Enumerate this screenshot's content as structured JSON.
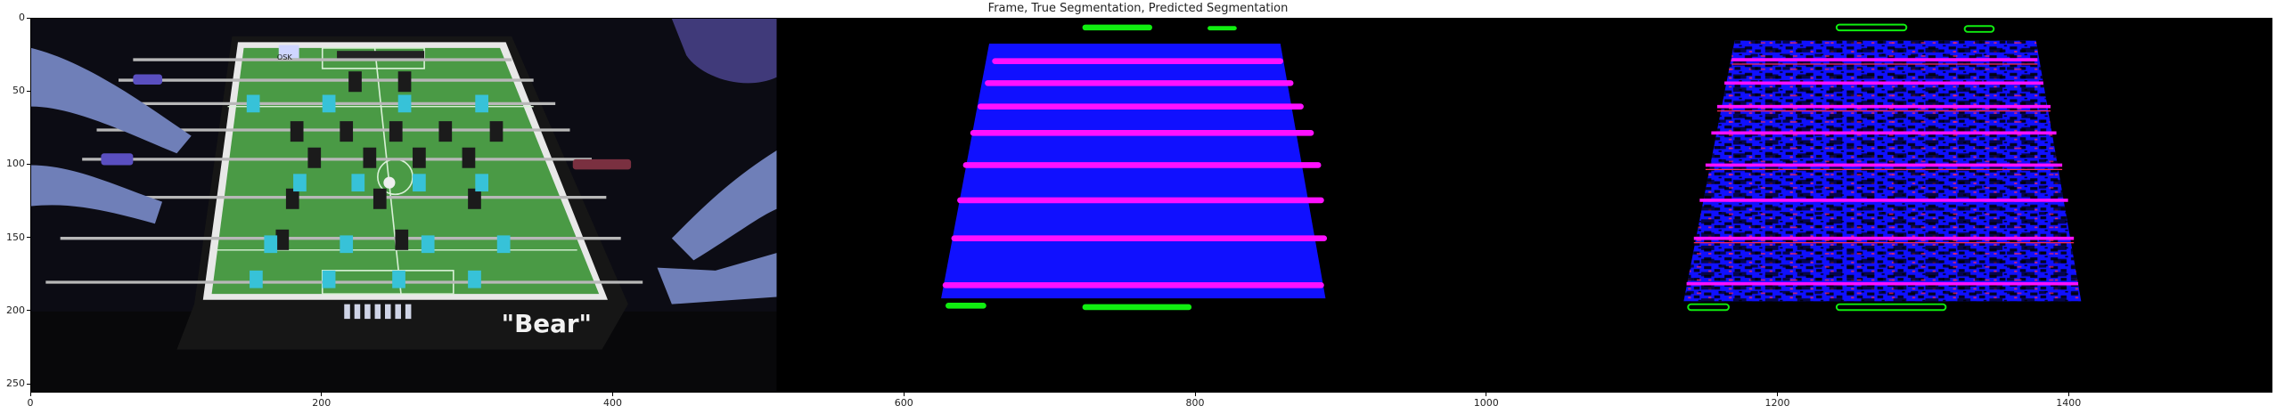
{
  "figure": {
    "title": "Frame, True Segmentation, Predicted Segmentation",
    "x_ticks": [
      "0",
      "200",
      "400",
      "600",
      "800",
      "1000",
      "1200",
      "1400"
    ],
    "y_ticks": [
      "0",
      "50",
      "100",
      "150",
      "200",
      "250"
    ],
    "x_tick_values": [
      0,
      200,
      400,
      600,
      800,
      1000,
      1200,
      1400
    ],
    "y_tick_values": [
      0,
      50,
      100,
      150,
      200,
      250
    ],
    "x_range": [
      0,
      1540
    ],
    "y_range": [
      0,
      256
    ]
  },
  "frame_panel": {
    "sign_text": "\"Bear\"",
    "badge_text": "OSK",
    "colors": {
      "field": "#4a9a45",
      "table_frame": "#151515",
      "player_dark": "#1b1b1b",
      "player_cyan": "#37c2d8",
      "hands": "#6f7fb8"
    }
  },
  "segmentation_colors": {
    "table": "#1010ff",
    "rods": "#ff10ff",
    "goals": "#10ee10",
    "background": "#000000",
    "noise_red": "#ff2a55"
  }
}
